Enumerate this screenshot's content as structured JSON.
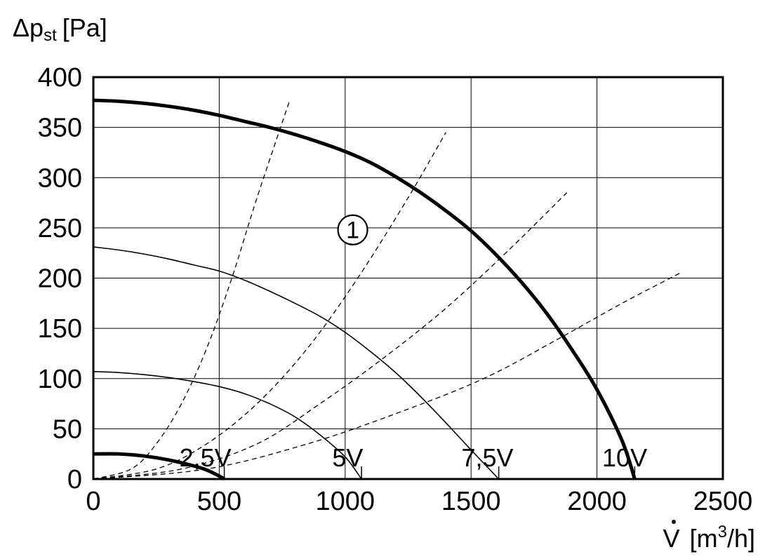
{
  "chart_data": {
    "type": "line",
    "ylabel": {
      "main": "Δp",
      "sub": "st",
      "unit": "[Pa]"
    },
    "xlabel": {
      "main": "V",
      "unit_pre": "[m",
      "sup": "3",
      "unit_post": "/h]"
    },
    "xlim": [
      0,
      2500
    ],
    "ylim": [
      0,
      400
    ],
    "x_ticks": [
      0,
      500,
      1000,
      1500,
      2000,
      2500
    ],
    "y_ticks": [
      0,
      50,
      100,
      150,
      200,
      250,
      300,
      350,
      400
    ],
    "grid": true,
    "x_tick_labels": [
      "0",
      "500",
      "1000",
      "1500",
      "2000",
      "2500"
    ],
    "y_tick_labels": [
      "0",
      "50",
      "100",
      "150",
      "200",
      "250",
      "300",
      "350",
      "400"
    ],
    "series": [
      {
        "voltage": "2,5V",
        "width": "thick",
        "label_x": 445,
        "points": [
          [
            0,
            25
          ],
          [
            100,
            25
          ],
          [
            200,
            23
          ],
          [
            300,
            19
          ],
          [
            400,
            13
          ],
          [
            450,
            9
          ],
          [
            500,
            3
          ],
          [
            520,
            0
          ]
        ]
      },
      {
        "voltage": "5V",
        "width": "thin",
        "label_x": 1010,
        "points": [
          [
            0,
            107
          ],
          [
            100,
            106
          ],
          [
            200,
            104
          ],
          [
            300,
            101
          ],
          [
            400,
            97
          ],
          [
            500,
            92
          ],
          [
            600,
            85
          ],
          [
            700,
            75
          ],
          [
            800,
            62
          ],
          [
            900,
            44
          ],
          [
            1000,
            22
          ],
          [
            1065,
            0
          ]
        ]
      },
      {
        "voltage": "7,5V",
        "width": "thin",
        "label_x": 1565,
        "points": [
          [
            0,
            231
          ],
          [
            100,
            228
          ],
          [
            200,
            224
          ],
          [
            300,
            219
          ],
          [
            400,
            213
          ],
          [
            500,
            207
          ],
          [
            600,
            198
          ],
          [
            700,
            187
          ],
          [
            800,
            175
          ],
          [
            900,
            162
          ],
          [
            1000,
            146
          ],
          [
            1100,
            127
          ],
          [
            1200,
            106
          ],
          [
            1300,
            82
          ],
          [
            1400,
            56
          ],
          [
            1500,
            29
          ],
          [
            1610,
            0
          ]
        ]
      },
      {
        "voltage": "10V",
        "width": "thick",
        "label_x": 2110,
        "points": [
          [
            0,
            377
          ],
          [
            100,
            376
          ],
          [
            200,
            374
          ],
          [
            300,
            371
          ],
          [
            400,
            367
          ],
          [
            500,
            362
          ],
          [
            600,
            356
          ],
          [
            700,
            350
          ],
          [
            800,
            343
          ],
          [
            900,
            335
          ],
          [
            1000,
            326
          ],
          [
            1100,
            315
          ],
          [
            1200,
            301
          ],
          [
            1300,
            285
          ],
          [
            1400,
            267
          ],
          [
            1500,
            247
          ],
          [
            1600,
            223
          ],
          [
            1700,
            196
          ],
          [
            1800,
            165
          ],
          [
            1900,
            129
          ],
          [
            2000,
            89
          ],
          [
            2100,
            38
          ],
          [
            2150,
            0
          ]
        ]
      }
    ],
    "system_curves": [
      {
        "points": [
          [
            0,
            0
          ],
          [
            150,
            10
          ],
          [
            250,
            35
          ],
          [
            350,
            75
          ],
          [
            450,
            130
          ],
          [
            550,
            200
          ],
          [
            650,
            280
          ],
          [
            780,
            377
          ]
        ]
      },
      {
        "points": [
          [
            0,
            0
          ],
          [
            250,
            10
          ],
          [
            450,
            35
          ],
          [
            650,
            75
          ],
          [
            850,
            130
          ],
          [
            1050,
            200
          ],
          [
            1250,
            280
          ],
          [
            1400,
            345
          ]
        ]
      },
      {
        "points": [
          [
            0,
            0
          ],
          [
            350,
            10
          ],
          [
            650,
            35
          ],
          [
            900,
            75
          ],
          [
            1150,
            120
          ],
          [
            1400,
            170
          ],
          [
            1650,
            228
          ],
          [
            1880,
            285
          ]
        ]
      },
      {
        "points": [
          [
            0,
            0
          ],
          [
            450,
            10
          ],
          [
            850,
            35
          ],
          [
            1200,
            65
          ],
          [
            1550,
            100
          ],
          [
            1850,
            140
          ],
          [
            2100,
            175
          ],
          [
            2330,
            205
          ]
        ]
      }
    ],
    "annotations": [
      {
        "text": "1",
        "x": 1030,
        "y": 248
      }
    ]
  }
}
